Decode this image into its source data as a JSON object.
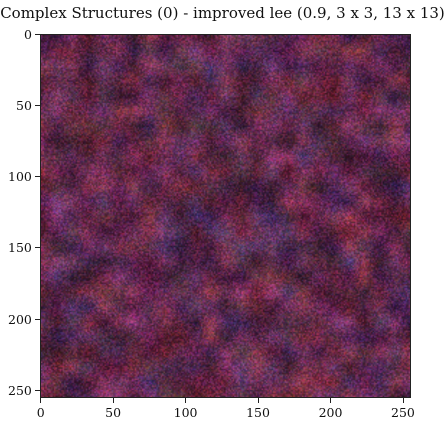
{
  "title": "Complex Structures (0) - improved lee (0.9, 3 x 3, 13 x 13)",
  "image": {
    "description_colors": {
      "base": "#6b3a58",
      "red_patch": "#a63c5a",
      "blue_patch": "#4d3d7a",
      "dark": "#3f2a3a"
    },
    "pixel_extent": [
      256,
      256
    ]
  },
  "axes": {
    "x_ticks": [
      {
        "label": "0",
        "value": 0
      },
      {
        "label": "50",
        "value": 50
      },
      {
        "label": "100",
        "value": 100
      },
      {
        "label": "150",
        "value": 150
      },
      {
        "label": "200",
        "value": 200
      },
      {
        "label": "250",
        "value": 250
      }
    ],
    "y_ticks": [
      {
        "label": "0",
        "value": 0
      },
      {
        "label": "50",
        "value": 50
      },
      {
        "label": "100",
        "value": 100
      },
      {
        "label": "150",
        "value": 150
      },
      {
        "label": "200",
        "value": 200
      },
      {
        "label": "250",
        "value": 250
      }
    ],
    "x_range": [
      -0.5,
      255.5
    ],
    "y_range": [
      -0.5,
      255.5
    ]
  }
}
